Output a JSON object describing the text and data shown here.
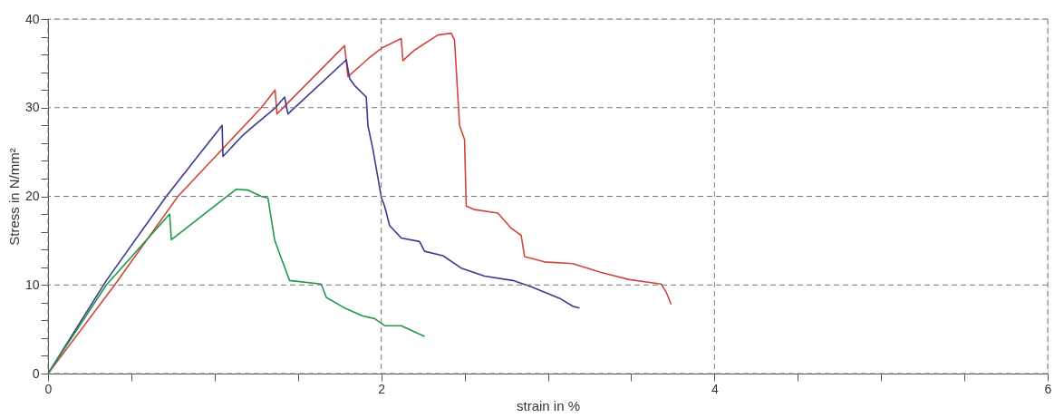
{
  "chart_data": {
    "type": "line",
    "xlabel": "strain in %",
    "ylabel": "Stress in N/mm²",
    "xlim": [
      0,
      6
    ],
    "ylim": [
      0,
      40
    ],
    "xticks": [
      0,
      {
        "value": 0.5,
        "label": null
      },
      {
        "value": 1,
        "label": null
      },
      {
        "value": 1.5,
        "label": null
      },
      2,
      {
        "value": 2.5,
        "label": null
      },
      {
        "value": 3,
        "label": null
      },
      {
        "value": 3.5,
        "label": null
      },
      4,
      {
        "value": 4.5,
        "label": null
      },
      {
        "value": 5,
        "label": null
      },
      {
        "value": 5.5,
        "label": null
      },
      6
    ],
    "yticks": [
      0,
      {
        "value": 2,
        "label": null
      },
      {
        "value": 4,
        "label": null
      },
      {
        "value": 6,
        "label": null
      },
      {
        "value": 8,
        "label": null
      },
      10,
      {
        "value": 12,
        "label": null
      },
      {
        "value": 14,
        "label": null
      },
      {
        "value": 16,
        "label": null
      },
      {
        "value": 18,
        "label": null
      },
      20,
      {
        "value": 22,
        "label": null
      },
      {
        "value": 24,
        "label": null
      },
      {
        "value": 26,
        "label": null
      },
      {
        "value": 28,
        "label": null
      },
      30,
      {
        "value": 32,
        "label": null
      },
      {
        "value": 34,
        "label": null
      },
      {
        "value": 36,
        "label": null
      },
      {
        "value": 38,
        "label": null
      },
      40
    ],
    "grid": true,
    "line_style": "solid",
    "marker": "none",
    "series": [
      {
        "color": "#d0463c",
        "x": [
          0,
          0.4,
          0.78,
          1.28,
          1.363,
          1.374,
          1.78,
          1.8,
          1.92,
          2.0,
          2.12,
          2.13,
          2.2,
          2.34,
          2.42,
          2.44,
          2.46,
          2.47,
          2.5,
          2.51,
          2.56,
          2.7,
          2.78,
          2.84,
          2.86,
          2.98,
          3.15,
          3.32,
          3.49,
          3.68,
          3.71,
          3.74
        ],
        "values": [
          0,
          10.0,
          20,
          30,
          32.0,
          29.3,
          37.0,
          33.5,
          35.5,
          36.7,
          37.8,
          35.3,
          36.5,
          38.2,
          38.4,
          37.6,
          31.2,
          28.0,
          26.4,
          18.9,
          18.5,
          18.1,
          16.4,
          15.6,
          13.2,
          12.6,
          12.4,
          11.4,
          10.6,
          10.1,
          9.2,
          7.8
        ]
      },
      {
        "color": "#3c3a8c",
        "x": [
          0,
          0.35,
          0.71,
          1.045,
          1.05,
          1.17,
          1.22,
          1.36,
          1.42,
          1.44,
          1.79,
          1.81,
          1.84,
          1.91,
          1.92,
          1.95,
          1.98,
          2.0,
          2.02,
          2.05,
          2.12,
          2.23,
          2.26,
          2.37,
          2.48,
          2.62,
          2.79,
          2.9,
          3.07,
          3.15,
          3.19
        ],
        "values": [
          0,
          10.5,
          20,
          28.0,
          24.5,
          26.9,
          27.7,
          29.9,
          31.2,
          29.3,
          35.4,
          33.3,
          32.5,
          31.2,
          28.0,
          25.3,
          22.1,
          19.9,
          18.9,
          16.7,
          15.3,
          14.9,
          13.8,
          13.3,
          11.9,
          11.0,
          10.5,
          9.8,
          8.5,
          7.6,
          7.4
        ]
      },
      {
        "color": "#1f9a4a",
        "x": [
          0,
          0.35,
          0.73,
          0.74,
          1.13,
          1.2,
          1.28,
          1.32,
          1.36,
          1.39,
          1.45,
          1.64,
          1.67,
          1.78,
          1.89,
          1.96,
          2.02,
          2.12,
          2.2,
          2.26
        ],
        "values": [
          0,
          10,
          18.0,
          15.1,
          20.8,
          20.7,
          20.0,
          19.8,
          15.1,
          13.5,
          10.5,
          10.1,
          8.6,
          7.4,
          6.5,
          6.2,
          5.4,
          5.4,
          4.7,
          4.2
        ]
      }
    ]
  }
}
